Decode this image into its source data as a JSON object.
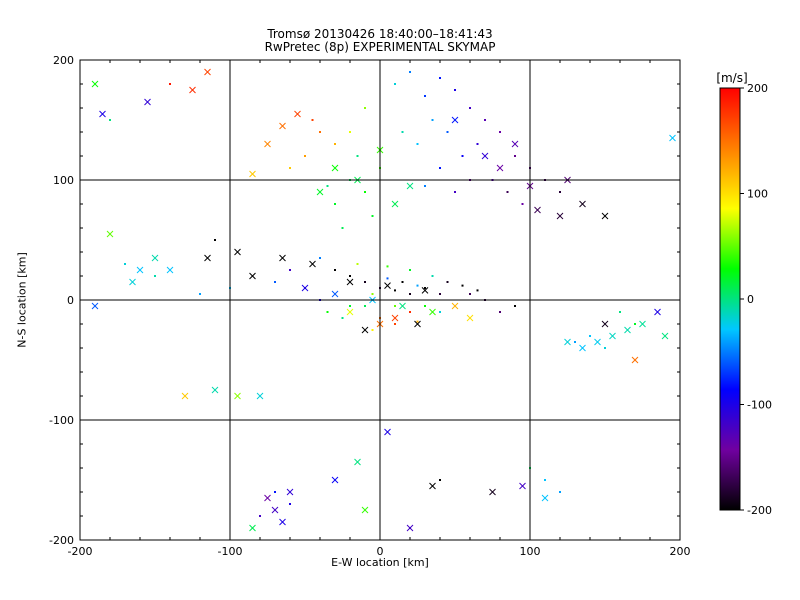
{
  "chart_data": {
    "type": "scatter",
    "title": "Tromsø 20130426 18:40:00–18:41:43",
    "subtitle": "RwPretec (8p) EXPERIMENTAL SKYMAP",
    "xlabel": "E-W location [km]",
    "ylabel": "N-S location [km]",
    "xlim": [
      -200,
      200
    ],
    "ylim": [
      -200,
      200
    ],
    "xticks": [
      -200,
      -100,
      0,
      100,
      200
    ],
    "yticks": [
      -200,
      -100,
      0,
      100,
      200
    ],
    "grid": true,
    "colorbar": {
      "label": "[m/s]",
      "ticks": [
        200,
        100,
        0,
        -100,
        -200
      ],
      "range": [
        -200,
        200
      ],
      "colors": [
        "#000000",
        "#7000a0",
        "#0000ff",
        "#00c8ff",
        "#00ff00",
        "#ffff00",
        "#ff8000",
        "#ff0000"
      ]
    },
    "series": [
      {
        "marker": "dot",
        "points": [
          [
            -40,
            35,
            -50
          ],
          [
            -20,
            20,
            -200
          ],
          [
            -10,
            15,
            -190
          ],
          [
            0,
            10,
            -180
          ],
          [
            10,
            8,
            -200
          ],
          [
            20,
            5,
            -190
          ],
          [
            30,
            10,
            -200
          ],
          [
            40,
            5,
            -180
          ],
          [
            15,
            15,
            -200
          ],
          [
            -30,
            25,
            -200
          ],
          [
            5,
            18,
            -60
          ],
          [
            25,
            12,
            -40
          ],
          [
            -5,
            5,
            60
          ],
          [
            10,
            -5,
            50
          ],
          [
            20,
            -10,
            180
          ],
          [
            0,
            -15,
            150
          ],
          [
            -10,
            -5,
            10
          ],
          [
            30,
            -5,
            30
          ],
          [
            40,
            -10,
            -20
          ],
          [
            -20,
            -5,
            20
          ],
          [
            -40,
            0,
            -100
          ],
          [
            -50,
            10,
            -150
          ],
          [
            60,
            5,
            -170
          ],
          [
            70,
            0,
            -180
          ],
          [
            80,
            -10,
            -160
          ],
          [
            -15,
            30,
            70
          ],
          [
            5,
            28,
            40
          ],
          [
            20,
            25,
            20
          ],
          [
            35,
            20,
            -10
          ],
          [
            -25,
            -15,
            0
          ],
          [
            10,
            -20,
            170
          ],
          [
            25,
            -18,
            120
          ],
          [
            -5,
            -25,
            90
          ],
          [
            45,
            15,
            -190
          ],
          [
            55,
            12,
            -200
          ],
          [
            -60,
            25,
            -120
          ],
          [
            -70,
            15,
            -60
          ],
          [
            65,
            8,
            -200
          ],
          [
            90,
            -5,
            -200
          ],
          [
            -35,
            -10,
            30
          ],
          [
            -40,
            140,
            150
          ],
          [
            -50,
            120,
            130
          ],
          [
            -60,
            110,
            110
          ],
          [
            -30,
            130,
            120
          ],
          [
            -45,
            150,
            170
          ],
          [
            -20,
            100,
            10
          ],
          [
            -10,
            90,
            30
          ],
          [
            -30,
            80,
            20
          ],
          [
            0,
            110,
            40
          ],
          [
            -15,
            120,
            0
          ],
          [
            -5,
            70,
            20
          ],
          [
            -25,
            60,
            10
          ],
          [
            -35,
            95,
            0
          ],
          [
            -20,
            140,
            80
          ],
          [
            -10,
            160,
            60
          ],
          [
            10,
            180,
            -20
          ],
          [
            20,
            190,
            -50
          ],
          [
            30,
            170,
            -70
          ],
          [
            40,
            185,
            -80
          ],
          [
            50,
            175,
            -100
          ],
          [
            60,
            160,
            -120
          ],
          [
            70,
            150,
            -130
          ],
          [
            80,
            140,
            -140
          ],
          [
            90,
            120,
            -150
          ],
          [
            100,
            110,
            -160
          ],
          [
            75,
            100,
            -130
          ],
          [
            85,
            90,
            -170
          ],
          [
            95,
            80,
            -140
          ],
          [
            65,
            130,
            -110
          ],
          [
            55,
            120,
            -90
          ],
          [
            45,
            140,
            -60
          ],
          [
            35,
            150,
            -40
          ],
          [
            25,
            130,
            -30
          ],
          [
            110,
            100,
            -170
          ],
          [
            120,
            90,
            -180
          ],
          [
            60,
            100,
            -150
          ],
          [
            50,
            90,
            -120
          ],
          [
            40,
            110,
            -80
          ],
          [
            30,
            95,
            -50
          ],
          [
            15,
            140,
            -10
          ],
          [
            -100,
            10,
            -30
          ],
          [
            -120,
            5,
            -40
          ],
          [
            -150,
            20,
            -10
          ],
          [
            -170,
            30,
            -20
          ],
          [
            -110,
            50,
            -200
          ],
          [
            130,
            -35,
            -40
          ],
          [
            140,
            -30,
            -30
          ],
          [
            150,
            -40,
            -20
          ],
          [
            160,
            -10,
            0
          ],
          [
            170,
            -20,
            20
          ],
          [
            -60,
            -170,
            -100
          ],
          [
            -70,
            -160,
            -80
          ],
          [
            -80,
            -180,
            -120
          ],
          [
            20,
            -190,
            -110
          ],
          [
            40,
            -150,
            -200
          ],
          [
            110,
            -150,
            -30
          ],
          [
            120,
            -160,
            -40
          ],
          [
            100,
            -140,
            10
          ],
          [
            -140,
            180,
            190
          ],
          [
            -180,
            150,
            0
          ]
        ]
      },
      {
        "marker": "cross",
        "points": [
          [
            -95,
            40,
            -200
          ],
          [
            -65,
            35,
            -200
          ],
          [
            -45,
            30,
            -200
          ],
          [
            -20,
            15,
            -200
          ],
          [
            5,
            12,
            -200
          ],
          [
            30,
            8,
            -200
          ],
          [
            -10,
            -25,
            -200
          ],
          [
            25,
            -20,
            -200
          ],
          [
            -85,
            20,
            -200
          ],
          [
            -115,
            35,
            -200
          ],
          [
            -50,
            10,
            -100
          ],
          [
            -30,
            5,
            -60
          ],
          [
            -5,
            0,
            -30
          ],
          [
            15,
            -5,
            0
          ],
          [
            35,
            -10,
            40
          ],
          [
            10,
            -15,
            170
          ],
          [
            0,
            -20,
            150
          ],
          [
            -20,
            -10,
            80
          ],
          [
            50,
            -5,
            120
          ],
          [
            60,
            -15,
            100
          ],
          [
            -65,
            145,
            150
          ],
          [
            -55,
            155,
            170
          ],
          [
            -75,
            130,
            140
          ],
          [
            -85,
            105,
            110
          ],
          [
            -30,
            110,
            30
          ],
          [
            -15,
            100,
            10
          ],
          [
            -40,
            90,
            20
          ],
          [
            0,
            125,
            40
          ],
          [
            20,
            95,
            0
          ],
          [
            10,
            80,
            10
          ],
          [
            50,
            150,
            -80
          ],
          [
            70,
            120,
            -110
          ],
          [
            90,
            130,
            -130
          ],
          [
            80,
            110,
            -140
          ],
          [
            100,
            95,
            -150
          ],
          [
            105,
            75,
            -170
          ],
          [
            120,
            70,
            -180
          ],
          [
            135,
            80,
            -190
          ],
          [
            150,
            70,
            -200
          ],
          [
            125,
            100,
            -160
          ],
          [
            -190,
            180,
            30
          ],
          [
            -185,
            155,
            -100
          ],
          [
            -155,
            165,
            -110
          ],
          [
            -125,
            175,
            180
          ],
          [
            -115,
            190,
            170
          ],
          [
            -160,
            25,
            -30
          ],
          [
            -165,
            15,
            -20
          ],
          [
            -150,
            35,
            -10
          ],
          [
            -140,
            25,
            -30
          ],
          [
            -180,
            55,
            50
          ],
          [
            -130,
            -80,
            110
          ],
          [
            -110,
            -75,
            -10
          ],
          [
            -95,
            -80,
            60
          ],
          [
            -80,
            -80,
            -20
          ],
          [
            -190,
            -5,
            -60
          ],
          [
            125,
            -35,
            -20
          ],
          [
            135,
            -40,
            -30
          ],
          [
            145,
            -35,
            -25
          ],
          [
            155,
            -30,
            -15
          ],
          [
            165,
            -25,
            -10
          ],
          [
            175,
            -20,
            -5
          ],
          [
            185,
            -10,
            -100
          ],
          [
            190,
            -30,
            0
          ],
          [
            150,
            -20,
            -190
          ],
          [
            170,
            -50,
            150
          ],
          [
            -75,
            -165,
            -140
          ],
          [
            -70,
            -175,
            -120
          ],
          [
            -65,
            -185,
            -100
          ],
          [
            -60,
            -160,
            -110
          ],
          [
            -85,
            -190,
            10
          ],
          [
            20,
            -190,
            -120
          ],
          [
            35,
            -155,
            -200
          ],
          [
            75,
            -160,
            -190
          ],
          [
            95,
            -155,
            -120
          ],
          [
            110,
            -165,
            -30
          ],
          [
            -15,
            -135,
            0
          ],
          [
            5,
            -110,
            -100
          ],
          [
            -10,
            -175,
            40
          ],
          [
            -30,
            -150,
            -90
          ],
          [
            195,
            135,
            -30
          ]
        ]
      }
    ]
  }
}
